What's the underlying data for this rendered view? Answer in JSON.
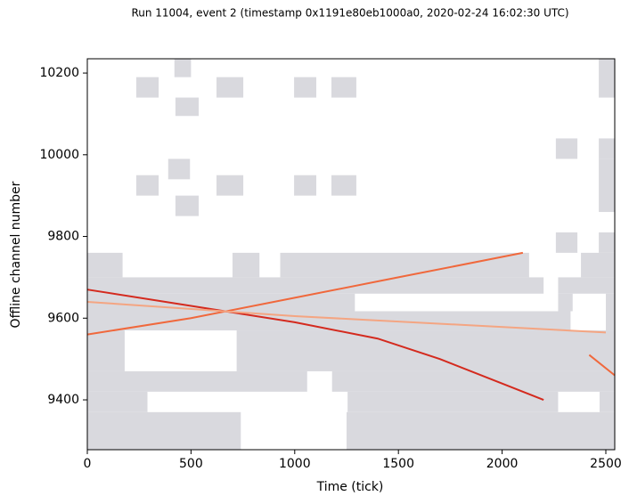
{
  "chart_data": {
    "type": "image",
    "title": "Run 11004, event 2 (timestamp 0x1191e80eb1000a0, 2020-02-24 16:02:30 UTC)",
    "xlabel": "Time (tick)",
    "ylabel": "Offline channel number",
    "xlim": [
      0,
      2543
    ],
    "ylim": [
      9278,
      10235
    ],
    "xticks": [
      0,
      500,
      1000,
      1500,
      2000,
      2500
    ],
    "yticks": [
      9400,
      9600,
      9800,
      10000,
      10200
    ],
    "region_color": "#d9d9de",
    "regions": [
      {
        "x": [
          420,
          500
        ],
        "y": [
          10190,
          10235
        ]
      },
      {
        "x": [
          236,
          344
        ],
        "y": [
          10140,
          10190
        ]
      },
      {
        "x": [
          623,
          752
        ],
        "y": [
          10140,
          10190
        ]
      },
      {
        "x": [
          997,
          1104
        ],
        "y": [
          10140,
          10190
        ]
      },
      {
        "x": [
          1177,
          1297
        ],
        "y": [
          10140,
          10190
        ]
      },
      {
        "x": [
          2466,
          2543
        ],
        "y": [
          10140,
          10235
        ]
      },
      {
        "x": [
          425,
          537
        ],
        "y": [
          10095,
          10140
        ]
      },
      {
        "x": [
          2259,
          2363
        ],
        "y": [
          9990,
          10040
        ]
      },
      {
        "x": [
          2466,
          2543
        ],
        "y": [
          9990,
          10040
        ]
      },
      {
        "x": [
          390,
          495
        ],
        "y": [
          9940,
          9990
        ]
      },
      {
        "x": [
          2466,
          2543
        ],
        "y": [
          9860,
          9990
        ]
      },
      {
        "x": [
          236,
          344
        ],
        "y": [
          9900,
          9950
        ]
      },
      {
        "x": [
          623,
          752
        ],
        "y": [
          9900,
          9950
        ]
      },
      {
        "x": [
          997,
          1104
        ],
        "y": [
          9900,
          9950
        ]
      },
      {
        "x": [
          1177,
          1297
        ],
        "y": [
          9900,
          9950
        ]
      },
      {
        "x": [
          425,
          537
        ],
        "y": [
          9850,
          9900
        ]
      },
      {
        "x": [
          2259,
          2363
        ],
        "y": [
          9760,
          9810
        ]
      },
      {
        "x": [
          2466,
          2543
        ],
        "y": [
          9760,
          9810
        ]
      },
      {
        "x": [
          0,
          170
        ],
        "y": [
          9700,
          9760
        ]
      },
      {
        "x": [
          700,
          830
        ],
        "y": [
          9700,
          9760
        ]
      },
      {
        "x": [
          930,
          2130
        ],
        "y": [
          9700,
          9760
        ]
      },
      {
        "x": [
          2380,
          2543
        ],
        "y": [
          9700,
          9760
        ]
      },
      {
        "x": [
          0,
          2200
        ],
        "y": [
          9660,
          9700
        ]
      },
      {
        "x": [
          2270,
          2543
        ],
        "y": [
          9660,
          9700
        ]
      },
      {
        "x": [
          0,
          1290
        ],
        "y": [
          9617,
          9660
        ]
      },
      {
        "x": [
          2270,
          2340
        ],
        "y": [
          9617,
          9660
        ]
      },
      {
        "x": [
          2500,
          2543
        ],
        "y": [
          9617,
          9660
        ]
      },
      {
        "x": [
          0,
          2330
        ],
        "y": [
          9570,
          9617
        ]
      },
      {
        "x": [
          2500,
          2543
        ],
        "y": [
          9570,
          9617
        ]
      },
      {
        "x": [
          0,
          180
        ],
        "y": [
          9470,
          9570
        ]
      },
      {
        "x": [
          720,
          2543
        ],
        "y": [
          9470,
          9570
        ]
      },
      {
        "x": [
          0,
          1060
        ],
        "y": [
          9420,
          9470
        ]
      },
      {
        "x": [
          1180,
          2543
        ],
        "y": [
          9420,
          9470
        ]
      },
      {
        "x": [
          0,
          290
        ],
        "y": [
          9370,
          9420
        ]
      },
      {
        "x": [
          1255,
          2270
        ],
        "y": [
          9370,
          9420
        ]
      },
      {
        "x": [
          2470,
          2543
        ],
        "y": [
          9370,
          9420
        ]
      },
      {
        "x": [
          0,
          740
        ],
        "y": [
          9278,
          9370
        ]
      },
      {
        "x": [
          1250,
          2543
        ],
        "y": [
          9278,
          9370
        ]
      }
    ],
    "tracks": [
      {
        "color": "#d42a1e",
        "x": [
          0,
          500,
          1000,
          1400,
          1700,
          2000,
          2200
        ],
        "y": [
          9670,
          9630,
          9590,
          9550,
          9500,
          9440,
          9400
        ]
      },
      {
        "color": "#f0683c",
        "x": [
          0,
          500,
          1000,
          1500,
          2100
        ],
        "y": [
          9560,
          9600,
          9650,
          9700,
          9760
        ]
      },
      {
        "color": "#f4a582",
        "x": [
          0,
          1000,
          2500
        ],
        "y": [
          9640,
          9605,
          9565
        ]
      },
      {
        "color": "#f0683c",
        "x": [
          2420,
          2543
        ],
        "y": [
          9510,
          9460
        ]
      }
    ]
  }
}
